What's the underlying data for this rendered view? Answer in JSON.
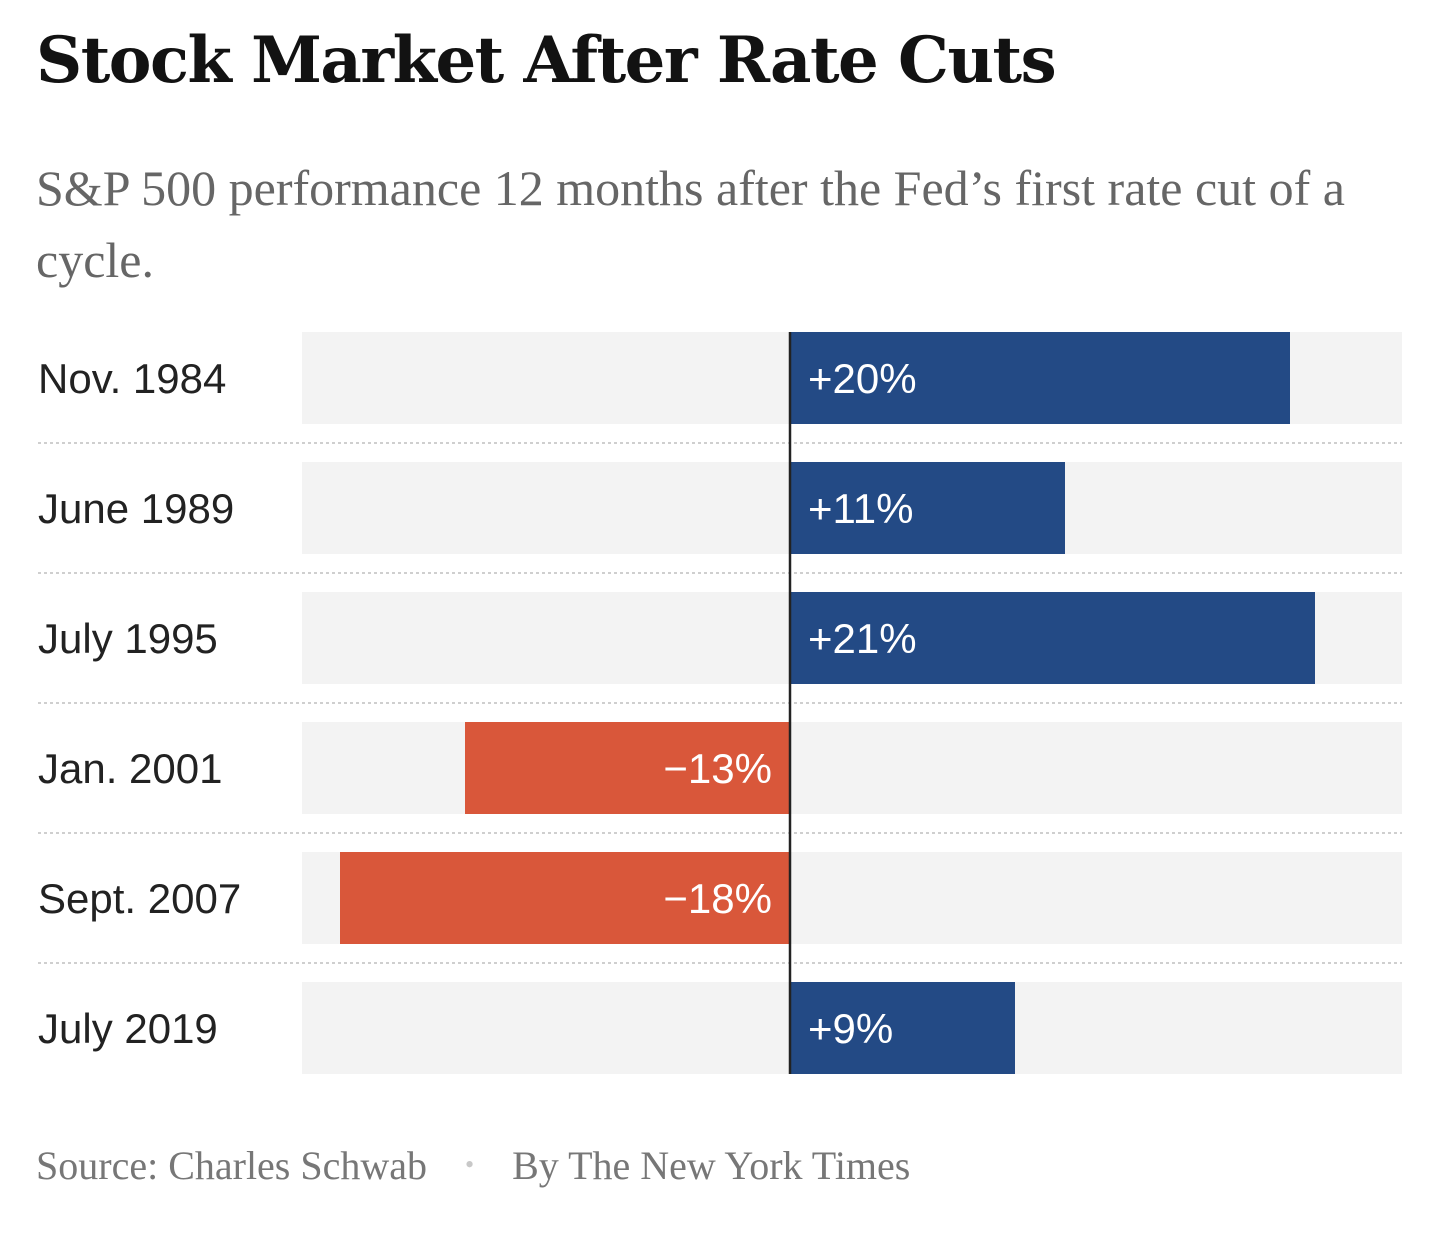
{
  "header": {
    "title": "Stock Market After Rate Cuts",
    "subtitle": "S&P 500 performance 12 months after the Fed’s first rate cut of a cycle."
  },
  "chart_data": {
    "type": "bar",
    "orientation": "horizontal",
    "categories": [
      "Nov. 1984",
      "June 1989",
      "July 1995",
      "Jan. 2001",
      "Sept. 2007",
      "July 2019"
    ],
    "values": [
      20,
      11,
      21,
      -13,
      -18,
      9
    ],
    "labels": [
      "+20%",
      "+11%",
      "+21%",
      "−13%",
      "−18%",
      "+9%"
    ],
    "xlim": [
      -20,
      25
    ],
    "unit": "%",
    "colors": {
      "positive": "#234a85",
      "negative": "#d9573a",
      "track": "#f3f3f3",
      "axis": "#222222",
      "separator": "#cfcfcf"
    }
  },
  "footer": {
    "source": "Source: Charles Schwab",
    "separator": "•",
    "byline": "By The New York Times"
  }
}
